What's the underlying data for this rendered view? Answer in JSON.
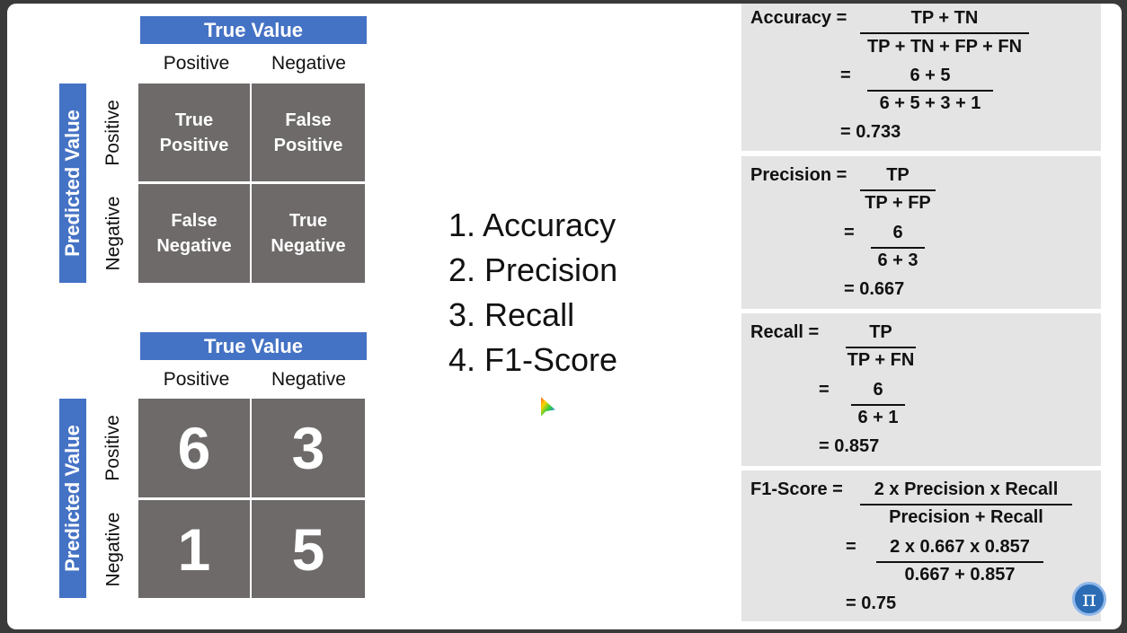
{
  "matrix_labels": {
    "true_value": "True Value",
    "predicted_value": "Predicted Value",
    "positive": "Positive",
    "negative": "Negative"
  },
  "matrix_top": {
    "tp": "True Positive",
    "fp": "False Positive",
    "fn": "False Negative",
    "tn": "True Negative"
  },
  "matrix_bottom": {
    "tp": "6",
    "fp": "3",
    "fn": "1",
    "tn": "5"
  },
  "metrics_list": [
    "1. Accuracy",
    "2. Precision",
    "3. Recall",
    "4. F1-Score"
  ],
  "formulas": {
    "accuracy": {
      "label": "Accuracy =",
      "num1": "TP + TN",
      "den1": "TP + TN + FP + FN",
      "eq": "=",
      "num2": "6 + 5",
      "den2": "6 + 5 + 3 + 1",
      "result": "= 0.733"
    },
    "precision": {
      "label": "Precision =",
      "num1": "TP",
      "den1": "TP + FP",
      "eq": "=",
      "num2": "6",
      "den2": "6 + 3",
      "result": "= 0.667"
    },
    "recall": {
      "label": "Recall  =",
      "num1": "TP",
      "den1": "TP + FN",
      "eq": "=",
      "num2": "6",
      "den2": "6 + 1",
      "result": "= 0.857"
    },
    "f1": {
      "label": "F1-Score  =",
      "num1": "2 x Precision x Recall",
      "den1": "Precision + Recall",
      "eq": "=",
      "num2": "2 x 0.667 x 0.857",
      "den2": "0.667 + 0.857",
      "result": "= 0.75"
    }
  },
  "logo": {
    "glyph": "π",
    "icon": "pi-logo-icon"
  },
  "colors": {
    "blue": "#4472c4",
    "cell": "#6d6a69",
    "panel": "#e4e4e4"
  }
}
